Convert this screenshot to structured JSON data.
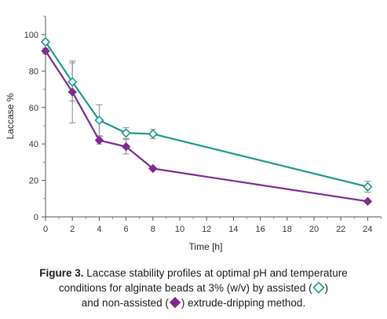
{
  "chart_data": {
    "type": "line",
    "xlabel": "Time [h]",
    "ylabel": "Laccase %",
    "xlim": [
      0,
      25
    ],
    "ylim": [
      0,
      110
    ],
    "xticks": [
      "0",
      "2",
      "4",
      "6",
      "8",
      "10",
      "12",
      "14",
      "16",
      "18",
      "20",
      "22",
      "24"
    ],
    "yticks": [
      "0",
      "20",
      "40",
      "60",
      "80",
      "100"
    ],
    "grid": false,
    "series": [
      {
        "name": "assisted",
        "color": "#1a9a8c",
        "marker": "diamond-open",
        "x": [
          0,
          2,
          4,
          6,
          8,
          24
        ],
        "y": [
          96,
          74,
          53,
          46,
          45.5,
          16.5
        ],
        "err": [
          1,
          10.5,
          8.5,
          3,
          2.5,
          3
        ]
      },
      {
        "name": "non-assisted",
        "color": "#7d2a8f",
        "marker": "diamond-filled",
        "x": [
          0,
          2,
          4,
          6,
          8,
          24
        ],
        "y": [
          91,
          68.5,
          42,
          38.5,
          26.5,
          8.5
        ],
        "err": [
          1.5,
          17,
          2,
          4,
          0,
          0
        ]
      }
    ]
  },
  "caption": {
    "label": "Figure 3.",
    "line1": " Laccase stability profiles at optimal pH and temperature",
    "line2a": "conditions for alginate beads at 3% (w/v) by assisted (",
    "line2b": ")",
    "line3a": "and non-assisted (",
    "line3b": ") extrude-dripping method."
  }
}
